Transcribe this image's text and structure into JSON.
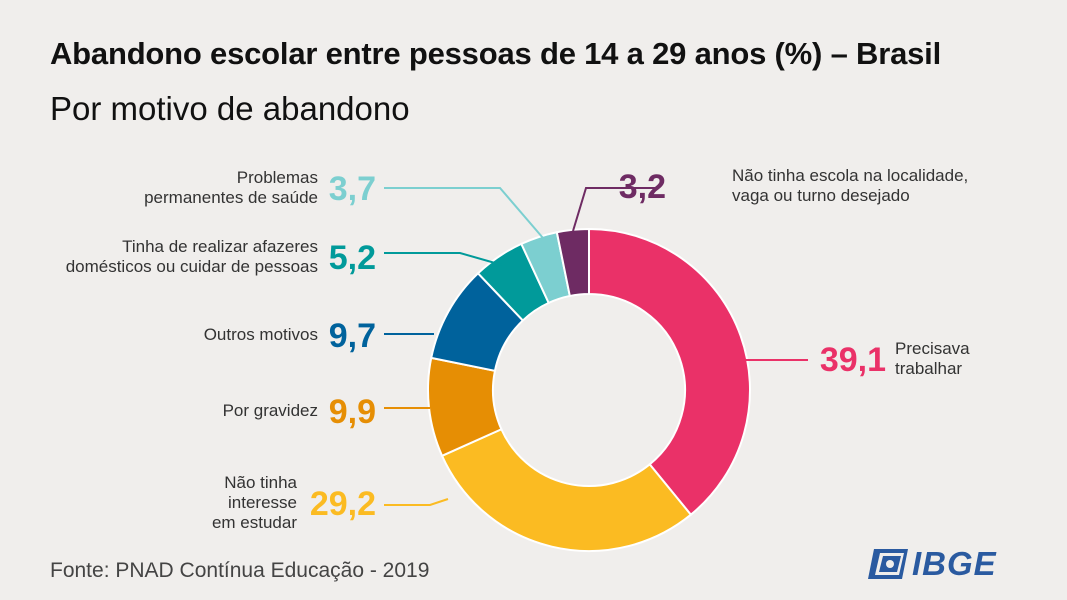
{
  "title": "Abandono escolar entre pessoas de 14 a 29 anos (%) – Brasil",
  "subtitle": "Por motivo de abandono",
  "source": "Fonte:  PNAD Contínua Educação - 2019",
  "logo_text": "IBGE",
  "chart_data": {
    "type": "pie",
    "variant": "donut",
    "title": "Abandono escolar entre pessoas de 14 a 29 anos (%) – Brasil",
    "subtitle": "Por motivo de abandono",
    "unit": "%",
    "slices": [
      {
        "label": "Precisava trabalhar",
        "label_lines": [
          "Precisava",
          "trabalhar"
        ],
        "value": 39.1,
        "value_label": "39,1",
        "color": "#ea3168"
      },
      {
        "label": "Não tinha interesse em estudar",
        "label_lines": [
          "Não tinha",
          "interesse",
          "em estudar"
        ],
        "value": 29.2,
        "value_label": "29,2",
        "color": "#fbbb22"
      },
      {
        "label": "Por gravidez",
        "label_lines": [
          "Por gravidez"
        ],
        "value": 9.9,
        "value_label": "9,9",
        "color": "#e68e04"
      },
      {
        "label": "Outros motivos",
        "label_lines": [
          "Outros motivos"
        ],
        "value": 9.7,
        "value_label": "9,7",
        "color": "#00629c"
      },
      {
        "label": "Tinha de realizar afazeres domésticos ou cuidar de pessoas",
        "label_lines": [
          "Tinha de realizar afazeres",
          "domésticos ou cuidar de pessoas"
        ],
        "value": 5.2,
        "value_label": "5,2",
        "color": "#019a9a"
      },
      {
        "label": "Problemas permanentes de saúde",
        "label_lines": [
          "Problemas",
          "permanentes de saúde"
        ],
        "value": 3.7,
        "value_label": "3,7",
        "color": "#7ccfd0"
      },
      {
        "label": "Não tinha escola na localidade, vaga ou turno desejado",
        "label_lines": [
          "Não tinha escola na localidade,",
          "vaga ou turno desejado"
        ],
        "value": 3.2,
        "value_label": "3,2",
        "color": "#6e2b63"
      }
    ]
  }
}
